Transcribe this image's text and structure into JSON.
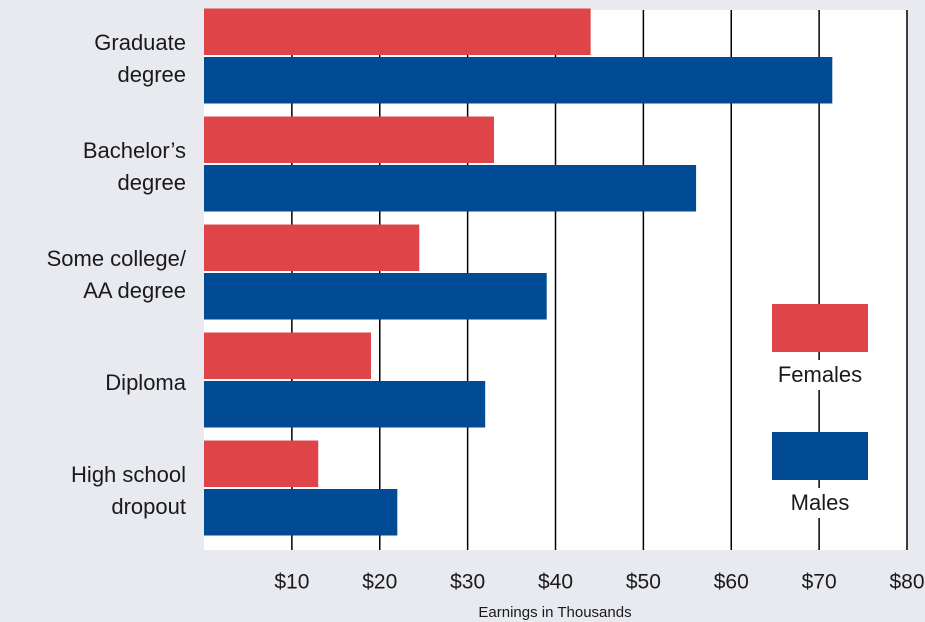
{
  "chart_data": {
    "type": "bar",
    "orientation": "horizontal",
    "categories": [
      [
        "Graduate",
        "degree"
      ],
      [
        "Bachelor’s",
        "degree"
      ],
      [
        "Some college/",
        "AA degree"
      ],
      [
        "Diploma"
      ],
      [
        "High school",
        "dropout"
      ]
    ],
    "series": [
      {
        "name": "Females",
        "color": "#de4448",
        "values": [
          44,
          33,
          24.5,
          19,
          13
        ]
      },
      {
        "name": "Males",
        "color": "#004b93",
        "values": [
          71.5,
          56,
          39,
          32,
          22
        ]
      }
    ],
    "xlabel": "Earnings in Thousands",
    "xlim": [
      0,
      80
    ],
    "xticks": [
      10,
      20,
      30,
      40,
      50,
      60,
      70,
      80
    ],
    "xtick_labels": [
      "$10",
      "$20",
      "$30",
      "$40",
      "$50",
      "$60",
      "$70",
      "$80"
    ],
    "grid": "vertical",
    "legend_position": "right-inside"
  }
}
